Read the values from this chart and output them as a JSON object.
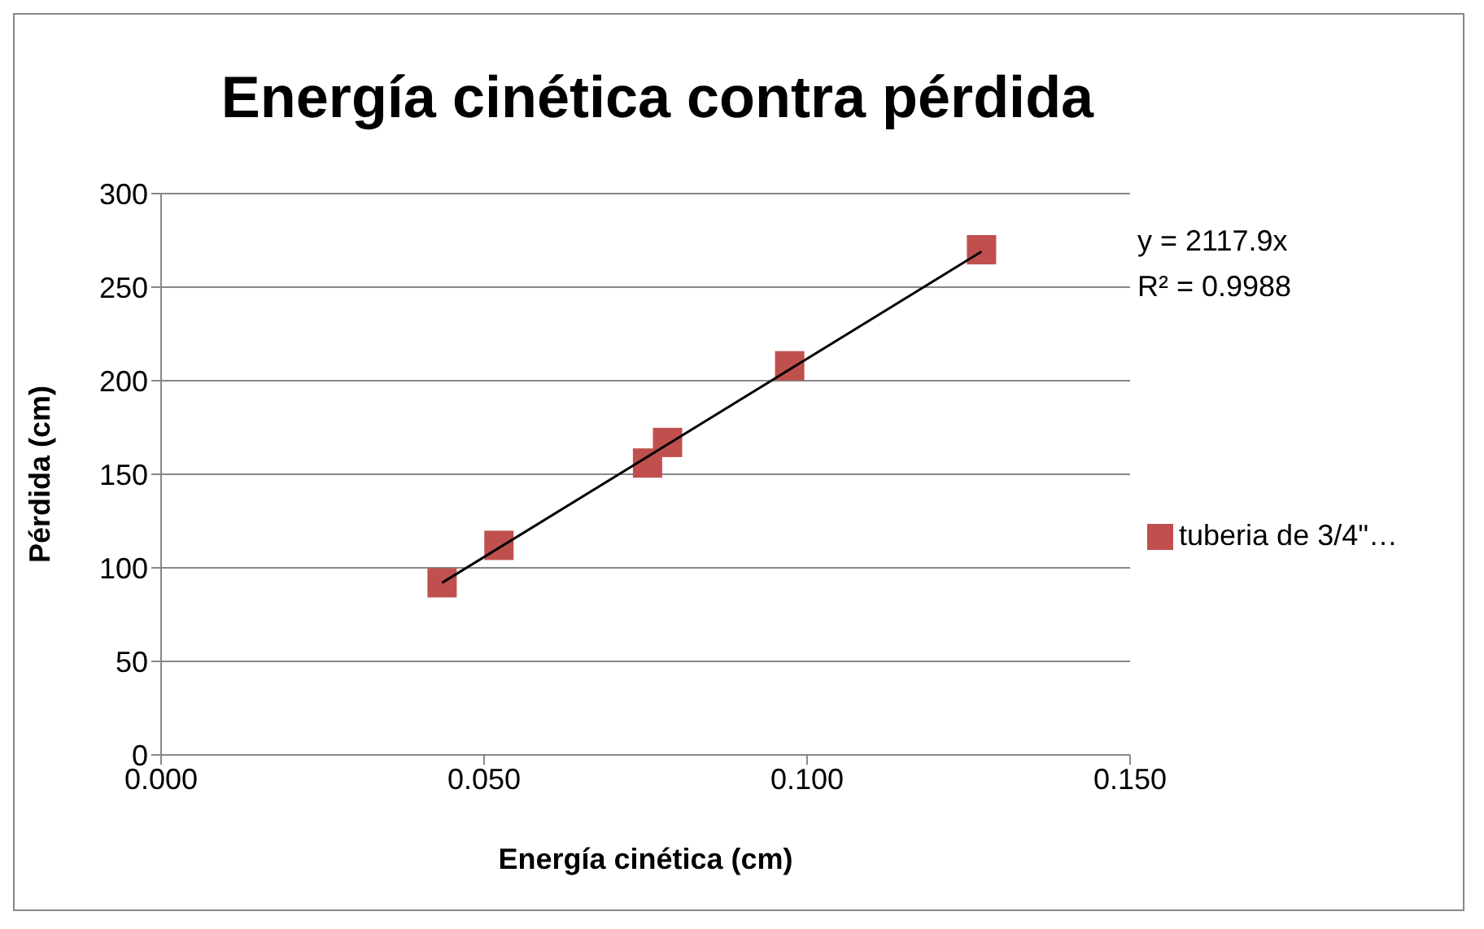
{
  "chart_data": {
    "type": "scatter",
    "title": "Energía cinética contra pérdida",
    "xlabel": "Energía cinética (cm)",
    "ylabel": "Pérdida (cm)",
    "xlim": [
      0,
      0.15
    ],
    "xticks": [
      {
        "value": 0,
        "label": "0.000"
      },
      {
        "value": 0.05,
        "label": "0.050"
      },
      {
        "value": 0.1,
        "label": "0.100"
      },
      {
        "value": 0.15,
        "label": "0.150"
      }
    ],
    "ylim": [
      0,
      300
    ],
    "yticks": [
      0,
      50,
      100,
      150,
      200,
      250,
      300
    ],
    "grid": "y",
    "legend": "right",
    "annotations": [
      "y = 2117.9x",
      "R² = 0.9988"
    ],
    "series": [
      {
        "name": "tuberia de 3/4\"…",
        "marker": "square",
        "color": "#c0504d",
        "x": [
          0.0435,
          0.0523,
          0.0753,
          0.0784,
          0.0973,
          0.127
        ],
        "values": [
          92,
          112,
          156,
          167,
          208,
          270
        ]
      },
      {
        "type": "line",
        "marker": "none",
        "line_style": "solid",
        "color": "#000000",
        "x": [
          0.0435,
          0.127
        ],
        "values": [
          92,
          269
        ]
      }
    ]
  }
}
